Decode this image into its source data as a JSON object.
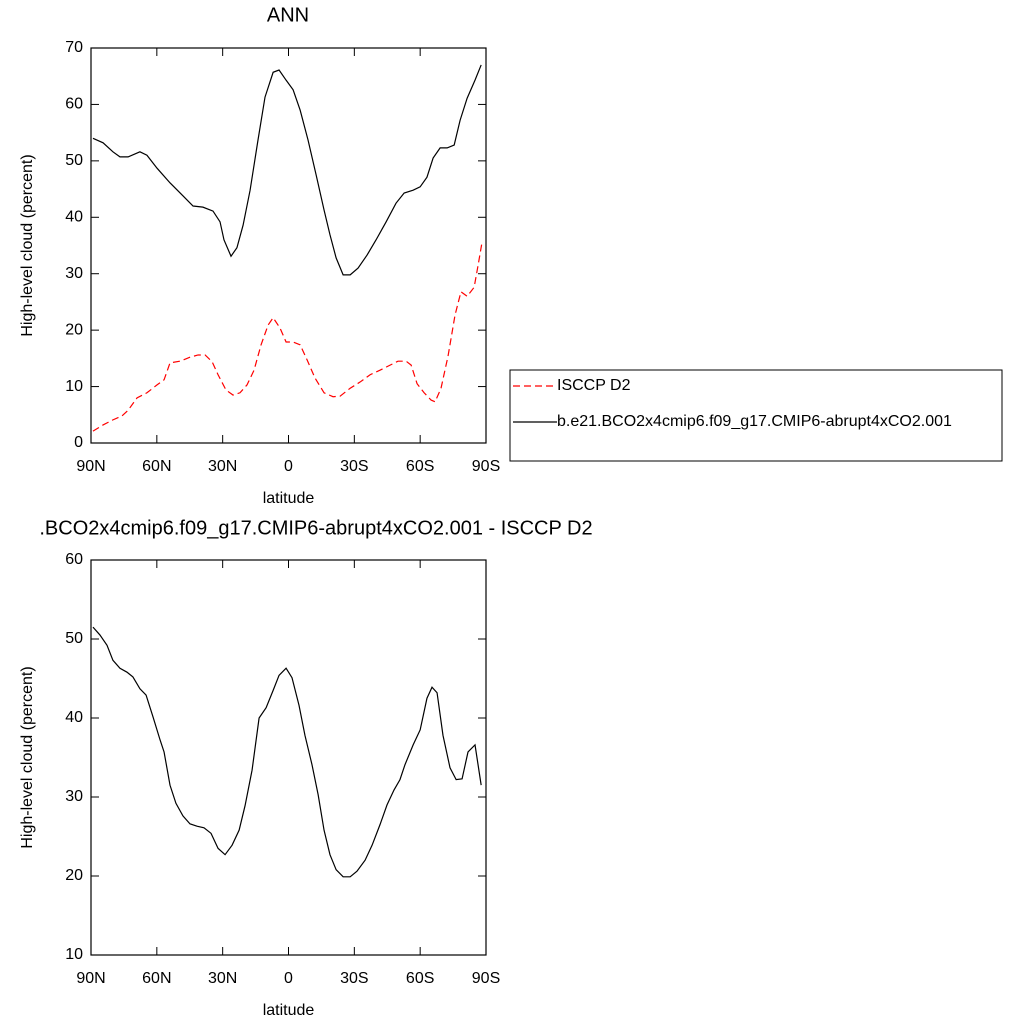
{
  "chart_data": [
    {
      "type": "line",
      "title": "ANN",
      "xlabel": "latitude",
      "ylabel": "High-level cloud (percent)",
      "xlim": [
        90,
        -90
      ],
      "xticks": [
        {
          "value": 90,
          "label": "90N"
        },
        {
          "value": 60,
          "label": "60N"
        },
        {
          "value": 30,
          "label": "30N"
        },
        0,
        {
          "value": -30,
          "label": "30S"
        },
        {
          "value": -60,
          "label": "60S"
        },
        {
          "value": -90,
          "label": "90S"
        }
      ],
      "ylim": [
        0,
        70
      ],
      "yticks": [
        0,
        10,
        20,
        30,
        40,
        50,
        60,
        70
      ],
      "legend": "right",
      "series": [
        {
          "name": "ISCCP D2",
          "color": "#ff0000",
          "line_style": "dashed",
          "x": [
            89.1,
            84.5,
            80.0,
            75.9,
            73.1,
            69.0,
            64.5,
            59.9,
            56.7,
            54.0,
            49.4,
            44.9,
            41.2,
            38.0,
            34.8,
            32.1,
            28.5,
            25.3,
            22.1,
            18.9,
            15.7,
            12.5,
            9.3,
            7.0,
            3.9,
            1.1,
            -2.1,
            -5.3,
            -8.5,
            -12.1,
            -16.2,
            -20.3,
            -23.5,
            -28.1,
            -32.6,
            -37.2,
            -41.7,
            -46.3,
            -49.9,
            -53.6,
            -55.9,
            -58.6,
            -61.8,
            -65.0,
            -66.8,
            -69.5,
            -72.7,
            -75.9,
            -78.6,
            -81.4,
            -84.6,
            -86.4,
            -88.2
          ],
          "values": [
            2.1,
            3.2,
            4.1,
            4.8,
            5.8,
            8.0,
            8.9,
            10.3,
            11.2,
            14.2,
            14.5,
            15.2,
            15.6,
            15.6,
            14.4,
            12.1,
            9.4,
            8.5,
            8.9,
            10.3,
            12.9,
            17.4,
            20.9,
            22.2,
            20.4,
            17.9,
            17.9,
            17.4,
            14.7,
            11.5,
            8.9,
            8.2,
            8.3,
            9.7,
            10.8,
            12.1,
            12.9,
            13.8,
            14.5,
            14.5,
            13.8,
            10.5,
            8.9,
            7.6,
            7.3,
            9.7,
            15.4,
            22.7,
            26.8,
            26.0,
            27.6,
            31.5,
            35.6
          ]
        },
        {
          "name": "b.e21.BCO2x4cmip6.f09_g17.CMIP6-abrupt4xCO2.001",
          "color": "#000000",
          "line_style": "solid",
          "x": [
            89.1,
            84.5,
            80.0,
            76.8,
            73.1,
            67.7,
            64.5,
            59.9,
            54.0,
            48.1,
            43.5,
            39.0,
            34.4,
            31.2,
            29.4,
            26.2,
            23.5,
            20.7,
            17.5,
            13.9,
            10.7,
            7.0,
            4.3,
            1.1,
            -2.1,
            -5.3,
            -8.9,
            -12.6,
            -16.2,
            -18.9,
            -21.7,
            -24.9,
            -28.1,
            -31.7,
            -35.8,
            -39.9,
            -44.5,
            -49.0,
            -52.7,
            -56.8,
            -60.0,
            -63.1,
            -65.9,
            -69.1,
            -72.3,
            -75.5,
            -78.2,
            -81.4,
            -85.0,
            -87.8
          ],
          "values": [
            54.0,
            53.2,
            51.6,
            50.7,
            50.7,
            51.6,
            51.0,
            48.7,
            46.1,
            43.8,
            42.0,
            41.8,
            41.1,
            39.2,
            36.0,
            33.1,
            34.6,
            38.6,
            44.8,
            53.7,
            61.3,
            65.7,
            66.1,
            64.3,
            62.6,
            59.0,
            53.7,
            47.5,
            41.3,
            36.9,
            32.8,
            29.8,
            29.8,
            31.0,
            33.3,
            36.0,
            39.2,
            42.5,
            44.3,
            44.8,
            45.4,
            47.1,
            50.5,
            52.3,
            52.3,
            52.8,
            57.2,
            61.1,
            64.3,
            67.0
          ]
        }
      ]
    },
    {
      "type": "line",
      "title": ".BCO2x4cmip6.f09_g17.CMIP6-abrupt4xCO2.001 - ISCCP D2",
      "xlabel": "latitude",
      "ylabel": "High-level cloud (percent)",
      "xlim": [
        90,
        -90
      ],
      "xticks": [
        {
          "value": 90,
          "label": "90N"
        },
        {
          "value": 60,
          "label": "60N"
        },
        {
          "value": 30,
          "label": "30N"
        },
        0,
        {
          "value": -30,
          "label": "30S"
        },
        {
          "value": -60,
          "label": "60S"
        },
        {
          "value": -90,
          "label": "90S"
        }
      ],
      "ylim": [
        10,
        60
      ],
      "yticks": [
        10,
        20,
        30,
        40,
        50,
        60
      ],
      "series": [
        {
          "color": "#000000",
          "line_style": "solid",
          "x": [
            89.1,
            85.9,
            82.7,
            80.0,
            76.8,
            73.6,
            70.9,
            67.7,
            64.9,
            61.7,
            58.5,
            56.7,
            54.0,
            51.3,
            48.1,
            44.9,
            41.7,
            38.5,
            35.3,
            32.1,
            28.9,
            25.7,
            22.5,
            19.8,
            16.6,
            13.4,
            10.2,
            7.0,
            4.3,
            1.1,
            -1.6,
            -4.8,
            -7.5,
            -10.7,
            -13.5,
            -16.2,
            -18.9,
            -21.7,
            -24.9,
            -28.1,
            -31.2,
            -34.9,
            -38.1,
            -41.7,
            -44.9,
            -48.1,
            -50.8,
            -53.1,
            -56.8,
            -60.0,
            -63.1,
            -65.4,
            -67.7,
            -70.4,
            -73.6,
            -76.4,
            -79.1,
            -81.8,
            -85.0,
            -87.8
          ],
          "values": [
            51.5,
            50.5,
            49.2,
            47.3,
            46.3,
            45.8,
            45.2,
            43.7,
            42.9,
            40.1,
            37.2,
            35.7,
            31.5,
            29.2,
            27.6,
            26.6,
            26.3,
            26.1,
            25.4,
            23.5,
            22.7,
            23.9,
            25.8,
            28.9,
            33.4,
            40.0,
            41.3,
            43.5,
            45.4,
            46.3,
            45.1,
            41.6,
            37.8,
            34.1,
            30.3,
            25.8,
            22.7,
            20.8,
            19.9,
            19.9,
            20.6,
            22.0,
            23.9,
            26.5,
            29.0,
            30.9,
            32.2,
            34.1,
            36.6,
            38.5,
            42.5,
            43.9,
            43.2,
            37.8,
            33.7,
            32.2,
            32.3,
            35.7,
            36.6,
            31.5
          ]
        }
      ]
    }
  ]
}
